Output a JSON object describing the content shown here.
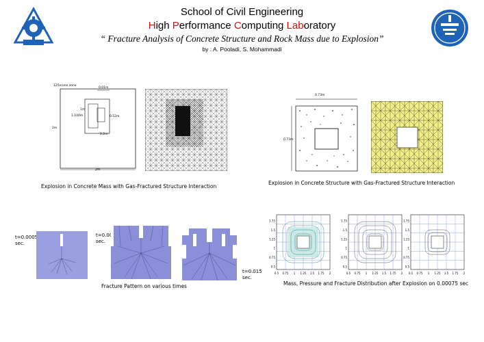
{
  "header": {
    "line1": "School of Civil Engineering",
    "line2_parts": [
      {
        "t": "H",
        "red": true
      },
      {
        "t": "igh ",
        "red": false
      },
      {
        "t": "P",
        "red": true
      },
      {
        "t": "erformance ",
        "red": false
      },
      {
        "t": "C",
        "red": true
      },
      {
        "t": "omputing ",
        "red": false
      },
      {
        "t": "Lab",
        "red": true
      },
      {
        "t": "oratory",
        "red": false
      }
    ],
    "title": "“ Fracture Analysis of Concrete Structure and Rock Mass due to Explosion”",
    "authors": "by : A. Pooladi, S. Mohammadi"
  },
  "colors": {
    "accent_red": "#d01010",
    "logo_blue": "#1f63b8",
    "mesh_yellow": "#f4ef86",
    "fracture_blue": "#8a8fd8"
  },
  "icons": {
    "left_logo": "faculty-logo-icon",
    "right_logo": "university-of-tehran-logo-icon"
  },
  "fig1": {
    "labels": {
      "zone": "125x(one zone",
      "top": "0.01m",
      "depth": "1m",
      "height": "1.100m",
      "side": "0.52m",
      "bottom": "0.2m",
      "left": "2m",
      "base": "2m"
    },
    "caption": "Explosion in Concrete Mass with Gas-Fractured Structure Interaction"
  },
  "fig2": {
    "labels": {
      "top": "0.73m",
      "left": "0.73m"
    },
    "caption": "Explosion in Concrete Structure with Gas-Fractured Structure Interaction"
  },
  "fig3": {
    "t1": "t=0.0005",
    "t1_unit": "sec.",
    "t2": "t=0.005",
    "t2_unit": "sec.",
    "t3": "t=0.015",
    "t3_unit": "sec.",
    "caption": "Fracture Pattern on various times"
  },
  "fig4": {
    "yticks": [
      "0.5",
      "0.75",
      "1",
      "1.25",
      "1.5",
      "1.75"
    ],
    "xticks": [
      "0.5",
      "0.75",
      "1",
      "1.25",
      "1.5",
      "1.75",
      "2"
    ],
    "caption": "Mass, Pressure and Fracture Distribution after Explosion on 0.00075 sec"
  }
}
